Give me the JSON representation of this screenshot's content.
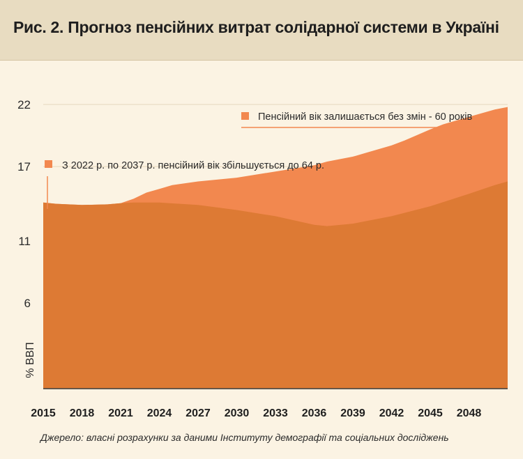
{
  "title": "Рис. 2. Прогноз пенсійних витрат солідарної системи в Україні",
  "source": "Джерело:  власні розрахунки за даними Інституту демографії та соціальних досліджень",
  "chart_data": {
    "type": "area",
    "ylabel": "% ВВП",
    "yticks": [
      6,
      11,
      17,
      22
    ],
    "ylim": [
      -0.9,
      22.9
    ],
    "xticks": [
      "2015",
      "2018",
      "2021",
      "2024",
      "2027",
      "2030",
      "2033",
      "2036",
      "2039",
      "2042",
      "2045",
      "2048"
    ],
    "xlim": [
      2015,
      2051
    ],
    "legend": {
      "top": "Пенсійний вік залишається без змін - 60 років",
      "bottom": "З 2022 р. по 2037 р. пенсійний вік збільшується до 64 р."
    },
    "colors": {
      "top": "#f2884f",
      "bottom": "#dd7a34",
      "background": "#fbf3e3"
    },
    "series": [
      {
        "name": "Пенсійний вік залишається без змін - 60 років",
        "x": [
          2015,
          2016,
          2018,
          2020,
          2021,
          2022,
          2023,
          2024,
          2025,
          2027,
          2030,
          2033,
          2036,
          2037,
          2039,
          2040,
          2042,
          2043,
          2045,
          2046,
          2048,
          2050,
          2051
        ],
        "y": [
          14.1,
          14.0,
          13.9,
          13.95,
          14.05,
          14.4,
          14.9,
          15.2,
          15.5,
          15.8,
          16.1,
          16.6,
          17.1,
          17.4,
          17.8,
          18.1,
          18.7,
          19.1,
          20.0,
          20.4,
          21.0,
          21.6,
          21.8
        ]
      },
      {
        "name": "З 2022 р. по 2037 р. пенсійний вік збільшується до 64 р.",
        "x": [
          2015,
          2016,
          2018,
          2020,
          2021,
          2022,
          2024,
          2027,
          2030,
          2033,
          2036,
          2037,
          2039,
          2040,
          2042,
          2045,
          2048,
          2050,
          2051
        ],
        "y": [
          14.1,
          14.0,
          13.9,
          13.95,
          14.05,
          14.1,
          14.1,
          13.9,
          13.5,
          13.0,
          12.3,
          12.2,
          12.4,
          12.6,
          13.0,
          13.8,
          14.8,
          15.5,
          15.8
        ]
      }
    ]
  }
}
